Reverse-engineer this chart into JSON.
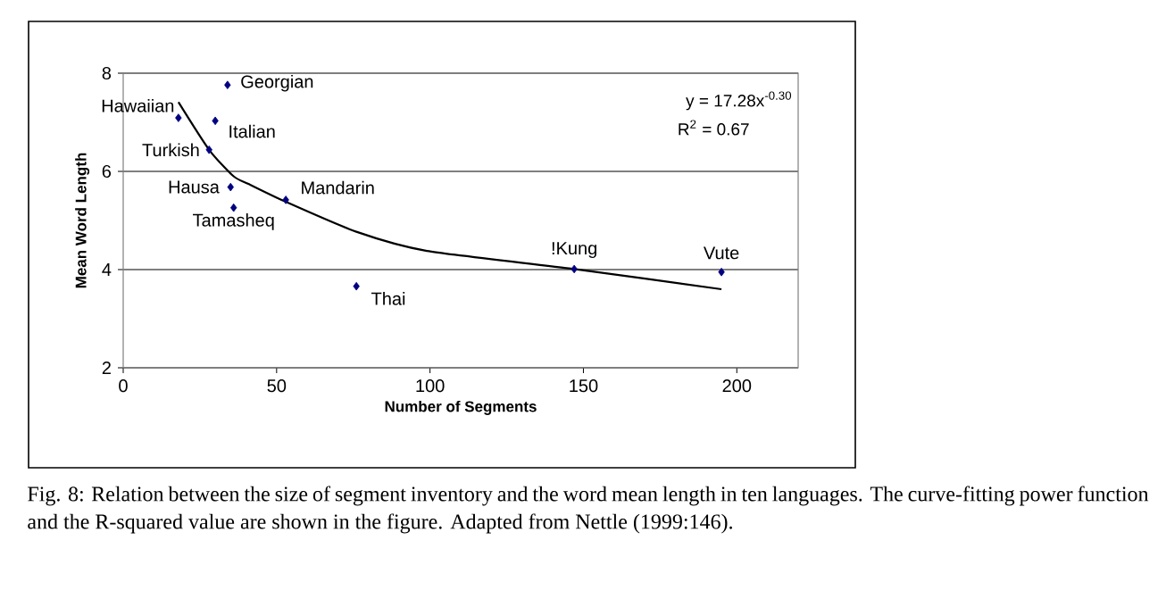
{
  "chart_data": {
    "type": "scatter",
    "xlabel": "Number of Segments",
    "ylabel": "Mean Word Length",
    "xlim": [
      0,
      220
    ],
    "ylim": [
      2,
      8
    ],
    "xticks": [
      0,
      50,
      100,
      150,
      200
    ],
    "yticks": [
      2,
      4,
      6,
      8
    ],
    "grid": "y",
    "marker": "diamond",
    "series": [
      {
        "color": "#000080",
        "x": [
          18,
          34,
          30,
          28,
          35,
          36,
          53,
          76,
          147,
          195
        ],
        "values": [
          7.09,
          7.76,
          7.03,
          6.44,
          5.68,
          5.26,
          5.42,
          3.66,
          4.01,
          3.95
        ]
      },
      {
        "type": "line",
        "color": "#000000",
        "marker": "none",
        "line_style": "solid",
        "x": [
          18,
          28,
          36,
          41,
          53,
          76,
          99,
          147,
          195
        ],
        "values": [
          7.41,
          6.44,
          5.9,
          5.74,
          5.38,
          4.77,
          4.38,
          4.01,
          3.6
        ]
      }
    ],
    "annotations": [
      {
        "text": "Hawaiian",
        "x": 18,
        "y": 7.09
      },
      {
        "text": "Georgian",
        "x": 34,
        "y": 7.76
      },
      {
        "text": "Italian",
        "x": 30,
        "y": 7.03
      },
      {
        "text": "Turkish",
        "x": 28,
        "y": 6.44
      },
      {
        "text": "Hausa",
        "x": 35,
        "y": 5.68
      },
      {
        "text": "Tamasheq",
        "x": 36,
        "y": 5.26
      },
      {
        "text": "Mandarin",
        "x": 53,
        "y": 5.42
      },
      {
        "text": "Thai",
        "x": 76,
        "y": 3.66
      },
      {
        "text": "!Kung",
        "x": 147,
        "y": 4.01
      },
      {
        "text": "Vute",
        "x": 195,
        "y": 3.95
      },
      "y = 17.28x$^{-0.30}$",
      "R$^{2}$ = 0.67",
      "Fig. 8: Relation between the size of segment inventory and the word mean length in ten languages. The curve-fitting power function and the R-squared value are shown in the figure. Adapted from Nettle (1999:146)."
    ]
  }
}
